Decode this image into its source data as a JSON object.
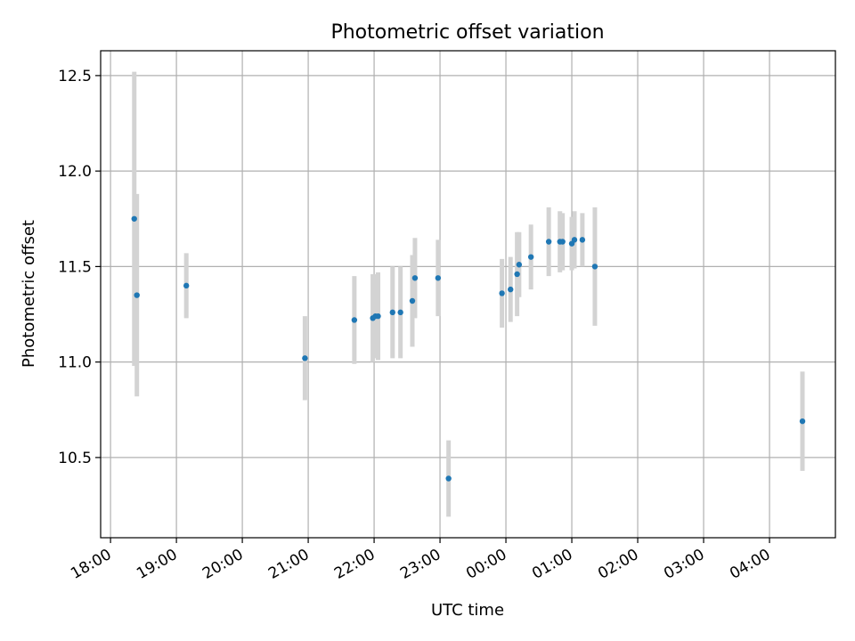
{
  "chart_data": {
    "type": "scatter",
    "title": "Photometric offset variation",
    "xlabel": "UTC time",
    "ylabel": "Photometric offset",
    "x_ticks": [
      "18:00",
      "19:00",
      "20:00",
      "21:00",
      "22:00",
      "23:00",
      "00:00",
      "01:00",
      "02:00",
      "03:00",
      "04:00"
    ],
    "y_ticks": [
      "10.5",
      "11.0",
      "11.5",
      "12.0",
      "12.5"
    ],
    "grid": true,
    "colors": {
      "point": "#1f77b4",
      "errorbar": "#d3d3d3"
    },
    "x_unit": "hours after 18:00 UTC",
    "xlim": [
      -0.15,
      11.0
    ],
    "ylim": [
      10.08,
      12.63
    ],
    "points": [
      {
        "x": 0.36,
        "y": 11.75,
        "err": 0.77
      },
      {
        "x": 0.4,
        "y": 11.35,
        "err": 0.53
      },
      {
        "x": 1.15,
        "y": 11.4,
        "err": 0.17
      },
      {
        "x": 2.95,
        "y": 11.02,
        "err": 0.22
      },
      {
        "x": 3.7,
        "y": 11.22,
        "err": 0.23
      },
      {
        "x": 3.98,
        "y": 11.23,
        "err": 0.23
      },
      {
        "x": 4.02,
        "y": 11.24,
        "err": 0.22
      },
      {
        "x": 4.06,
        "y": 11.24,
        "err": 0.23
      },
      {
        "x": 4.28,
        "y": 11.26,
        "err": 0.24
      },
      {
        "x": 4.4,
        "y": 11.26,
        "err": 0.24
      },
      {
        "x": 4.58,
        "y": 11.32,
        "err": 0.24
      },
      {
        "x": 4.62,
        "y": 11.44,
        "err": 0.21
      },
      {
        "x": 4.97,
        "y": 11.44,
        "err": 0.2
      },
      {
        "x": 5.13,
        "y": 10.39,
        "err": 0.2
      },
      {
        "x": 5.94,
        "y": 11.36,
        "err": 0.18
      },
      {
        "x": 6.07,
        "y": 11.38,
        "err": 0.17
      },
      {
        "x": 6.17,
        "y": 11.46,
        "err": 0.22
      },
      {
        "x": 6.2,
        "y": 11.51,
        "err": 0.17
      },
      {
        "x": 6.38,
        "y": 11.55,
        "err": 0.17
      },
      {
        "x": 6.65,
        "y": 11.63,
        "err": 0.18
      },
      {
        "x": 6.82,
        "y": 11.63,
        "err": 0.16
      },
      {
        "x": 6.86,
        "y": 11.63,
        "err": 0.15
      },
      {
        "x": 7.0,
        "y": 11.62,
        "err": 0.14
      },
      {
        "x": 7.04,
        "y": 11.64,
        "err": 0.15
      },
      {
        "x": 7.16,
        "y": 11.64,
        "err": 0.14
      },
      {
        "x": 7.35,
        "y": 11.5,
        "err": 0.31
      },
      {
        "x": 10.5,
        "y": 10.69,
        "err": 0.26
      }
    ]
  }
}
